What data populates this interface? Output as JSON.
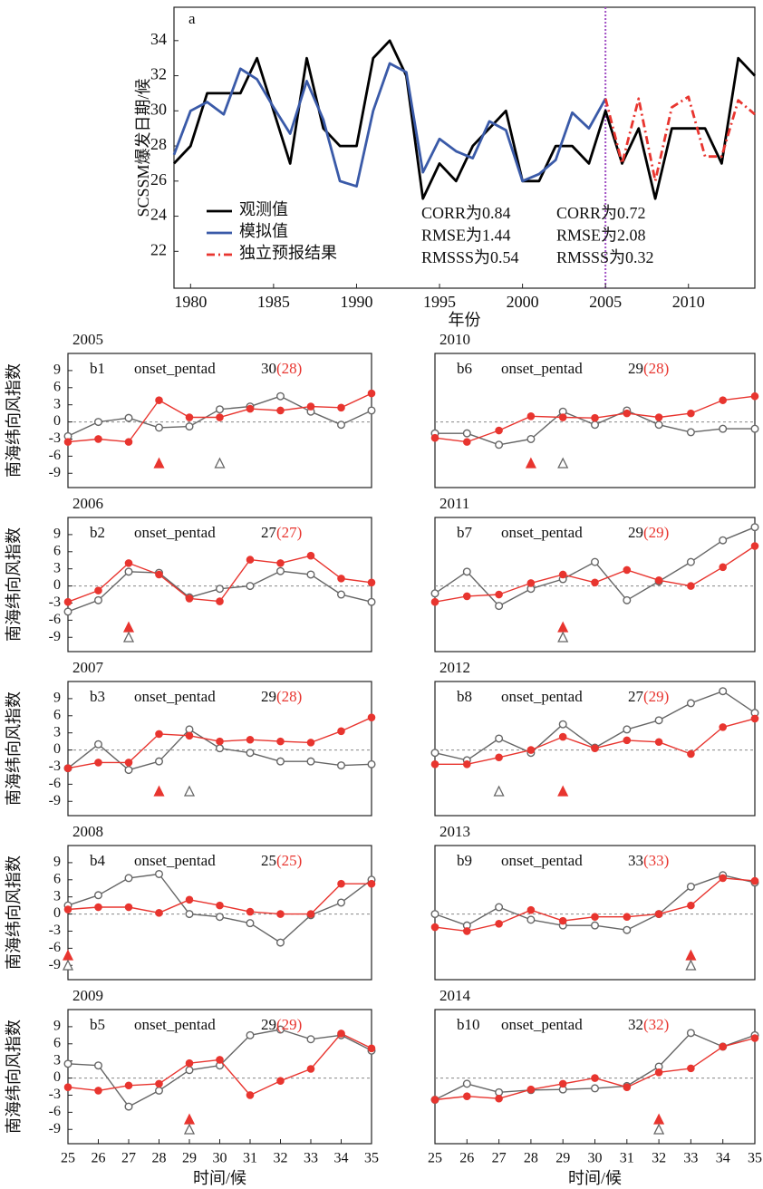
{
  "chart_data": [
    {
      "type": "line",
      "panel": "a",
      "ylabel": "SCSSM爆发日期/候",
      "xlabel": "年份",
      "x": [
        1979,
        1980,
        1981,
        1982,
        1983,
        1984,
        1985,
        1986,
        1987,
        1988,
        1989,
        1990,
        1991,
        1992,
        1993,
        1994,
        1995,
        1996,
        1997,
        1998,
        1999,
        2000,
        2001,
        2002,
        2003,
        2004,
        2005,
        2006,
        2007,
        2008,
        2009,
        2010,
        2011,
        2012,
        2013,
        2014
      ],
      "xlim": [
        1979,
        2014
      ],
      "xticks": [
        1980,
        1985,
        1990,
        1995,
        2000,
        2005,
        2010
      ],
      "ylim": [
        19.9,
        35.9
      ],
      "yticks": [
        22,
        24,
        26,
        28,
        30,
        32,
        34
      ],
      "vline": 2005,
      "vline_color": "#a14fc4",
      "series": [
        {
          "name": "观测值",
          "color": "#000000",
          "values": [
            27,
            28,
            31,
            31,
            31,
            33,
            30,
            27,
            33,
            29,
            28,
            28,
            33,
            34,
            32,
            25,
            27,
            26,
            28,
            29,
            30,
            26,
            26,
            28,
            28,
            27,
            30,
            27,
            29,
            25,
            29,
            29,
            29,
            27,
            33,
            32
          ]
        },
        {
          "name": "模拟值",
          "color": "#3a5aa8",
          "values": [
            27.5,
            30,
            30.5,
            29.8,
            32.4,
            31.8,
            30.2,
            28.7,
            31.7,
            29.5,
            26,
            25.7,
            30,
            32.7,
            32.2,
            26.5,
            28.4,
            27.7,
            27.3,
            29.4,
            28.9,
            26,
            26.4,
            27.2,
            29.9,
            29,
            30.7,
            null,
            null,
            null,
            null,
            null,
            null,
            null,
            null,
            null
          ]
        },
        {
          "name": "独立预报结果",
          "color": "#e8352f",
          "linestyle": "dashdot",
          "values": [
            null,
            null,
            null,
            null,
            null,
            null,
            null,
            null,
            null,
            null,
            null,
            null,
            null,
            null,
            null,
            null,
            null,
            null,
            null,
            null,
            null,
            null,
            null,
            null,
            null,
            null,
            30.7,
            27,
            30.7,
            26,
            30.2,
            30.8,
            27.4,
            27.4,
            30.6,
            29.8
          ]
        }
      ],
      "stats": [
        [
          "CORR为0.84",
          "RMSE为1.44",
          "RMSSS为0.54"
        ],
        [
          "CORR为0.72",
          "RMSE为2.08",
          "RMSSS为0.32"
        ]
      ]
    },
    {
      "type": "line",
      "year": "2005",
      "panel": "b1",
      "onset_title": "onset_pentad",
      "onset_obs": 30,
      "onset_model": 28,
      "onset_model_label": "(28)",
      "ylabel": "南海纬向风指数",
      "x": [
        25,
        26,
        27,
        28,
        29,
        30,
        31,
        32,
        33,
        34,
        35
      ],
      "xlim": [
        25,
        35
      ],
      "ylim": [
        -11.5,
        12
      ],
      "yticks": [
        -9,
        -6,
        -3,
        0,
        3,
        6,
        9
      ],
      "zero_line": true,
      "series": [
        {
          "color": "#666666",
          "marker": "open-circle",
          "values": [
            -2.5,
            0,
            0.7,
            -1,
            -0.8,
            2.2,
            2.7,
            4.5,
            1.8,
            -0.5,
            2
          ]
        },
        {
          "color": "#e8352f",
          "marker": "dot",
          "values": [
            -3.5,
            -3,
            -3.5,
            3.8,
            0.8,
            0.8,
            2.3,
            2,
            2.7,
            2.5,
            5
          ]
        }
      ]
    },
    {
      "type": "line",
      "year": "2006",
      "panel": "b2",
      "onset_title": "onset_pentad",
      "onset_obs": 27,
      "onset_model": 27,
      "onset_model_label": "(27)",
      "ylabel": "南海纬向风指数",
      "x": [
        25,
        26,
        27,
        28,
        29,
        30,
        31,
        32,
        33,
        34,
        35
      ],
      "xlim": [
        25,
        35
      ],
      "ylim": [
        -11.5,
        12
      ],
      "yticks": [
        -9,
        -6,
        -3,
        0,
        3,
        6,
        9
      ],
      "zero_line": true,
      "series": [
        {
          "color": "#666666",
          "marker": "open-circle",
          "values": [
            -4.5,
            -2.5,
            2.5,
            2.3,
            -2,
            -0.5,
            0,
            2.6,
            2,
            -1.5,
            -2.8
          ]
        },
        {
          "color": "#e8352f",
          "marker": "dot",
          "values": [
            -2.8,
            -0.8,
            4,
            2,
            -2.2,
            -2.7,
            4.6,
            4,
            5.3,
            1.3,
            0.6
          ]
        }
      ]
    },
    {
      "type": "line",
      "year": "2007",
      "panel": "b3",
      "onset_title": "onset_pentad",
      "onset_obs": 29,
      "onset_model": 28,
      "onset_model_label": "(28)",
      "ylabel": "南海纬向风指数",
      "x": [
        25,
        26,
        27,
        28,
        29,
        30,
        31,
        32,
        33,
        34,
        35
      ],
      "xlim": [
        25,
        35
      ],
      "ylim": [
        -11.5,
        12
      ],
      "yticks": [
        -9,
        -6,
        -3,
        0,
        3,
        6,
        9
      ],
      "zero_line": true,
      "series": [
        {
          "color": "#666666",
          "marker": "open-circle",
          "values": [
            -3.2,
            1,
            -3.5,
            -2,
            3.6,
            0.3,
            -0.5,
            -2,
            -2,
            -2.7,
            -2.5
          ]
        },
        {
          "color": "#e8352f",
          "marker": "dot",
          "values": [
            -3.2,
            -2.2,
            -2.2,
            2.8,
            2.5,
            1.5,
            1.8,
            1.5,
            1.3,
            3.3,
            5.7
          ]
        }
      ]
    },
    {
      "type": "line",
      "year": "2008",
      "panel": "b4",
      "onset_title": "onset_pentad",
      "onset_obs": 25,
      "onset_model": 25,
      "onset_model_label": "(25)",
      "ylabel": "南海纬向风指数",
      "x": [
        25,
        26,
        27,
        28,
        29,
        30,
        31,
        32,
        33,
        34,
        35
      ],
      "xlim": [
        25,
        35
      ],
      "ylim": [
        -11.5,
        12
      ],
      "yticks": [
        -9,
        -6,
        -3,
        0,
        3,
        6,
        9
      ],
      "zero_line": true,
      "series": [
        {
          "color": "#666666",
          "marker": "open-circle",
          "values": [
            1.5,
            3.3,
            6.3,
            7,
            0,
            -0.5,
            -1.6,
            -5,
            -0.2,
            2,
            6
          ]
        },
        {
          "color": "#e8352f",
          "marker": "dot",
          "values": [
            0.8,
            1.2,
            1.2,
            0.2,
            2.5,
            1.5,
            0.4,
            0,
            0,
            5.3,
            5.3
          ]
        }
      ]
    },
    {
      "type": "line",
      "year": "2009",
      "panel": "b5",
      "onset_title": "onset_pentad",
      "onset_obs": 29,
      "onset_model": 29,
      "onset_model_label": "(29)",
      "ylabel": "南海纬向风指数",
      "xlabel": "时间/候",
      "x": [
        25,
        26,
        27,
        28,
        29,
        30,
        31,
        32,
        33,
        34,
        35
      ],
      "xlim": [
        25,
        35
      ],
      "xticks": [
        25,
        26,
        27,
        28,
        29,
        30,
        31,
        32,
        33,
        34,
        35
      ],
      "ylim": [
        -11.5,
        12
      ],
      "yticks": [
        -9,
        -6,
        -3,
        0,
        3,
        6,
        9
      ],
      "zero_line": true,
      "series": [
        {
          "color": "#666666",
          "marker": "open-circle",
          "values": [
            2.5,
            2.2,
            -5,
            -2.2,
            1.4,
            2.2,
            7.5,
            8.5,
            6.8,
            7.5,
            4.8
          ]
        },
        {
          "color": "#e8352f",
          "marker": "dot",
          "values": [
            -1.6,
            -2.2,
            -1.3,
            -1,
            2.6,
            3.2,
            -3,
            -0.5,
            1.6,
            7.8,
            5.2
          ]
        }
      ]
    },
    {
      "type": "line",
      "year": "2010",
      "panel": "b6",
      "onset_title": "onset_pentad",
      "onset_obs": 29,
      "onset_model": 28,
      "onset_model_label": "(28)",
      "x": [
        25,
        26,
        27,
        28,
        29,
        30,
        31,
        32,
        33,
        34,
        35
      ],
      "xlim": [
        25,
        35
      ],
      "ylim": [
        -11.5,
        12
      ],
      "zero_line": true,
      "series": [
        {
          "color": "#666666",
          "marker": "open-circle",
          "values": [
            -2,
            -2,
            -4,
            -3,
            1.8,
            -0.5,
            2,
            -0.5,
            -1.8,
            -1.2,
            -1.2
          ]
        },
        {
          "color": "#e8352f",
          "marker": "dot",
          "values": [
            -2.8,
            -3.5,
            -1.5,
            1,
            0.8,
            0.7,
            1.5,
            0.8,
            1.5,
            3.8,
            4.5
          ]
        }
      ]
    },
    {
      "type": "line",
      "year": "2011",
      "panel": "b7",
      "onset_title": "onset_pentad",
      "onset_obs": 29,
      "onset_model": 29,
      "onset_model_label": "(29)",
      "x": [
        25,
        26,
        27,
        28,
        29,
        30,
        31,
        32,
        33,
        34,
        35
      ],
      "xlim": [
        25,
        35
      ],
      "ylim": [
        -11.5,
        12
      ],
      "zero_line": true,
      "series": [
        {
          "color": "#666666",
          "marker": "open-circle",
          "values": [
            -1.3,
            2.5,
            -3.5,
            -0.5,
            1.2,
            4.2,
            -2.5,
            0.8,
            4.2,
            8,
            10.3
          ]
        },
        {
          "color": "#e8352f",
          "marker": "dot",
          "values": [
            -2.8,
            -1.8,
            -1.5,
            0.5,
            2,
            0.6,
            2.8,
            1,
            0,
            3.3,
            7
          ]
        }
      ]
    },
    {
      "type": "line",
      "year": "2012",
      "panel": "b8",
      "onset_title": "onset_pentad",
      "onset_obs": 27,
      "onset_model": 29,
      "onset_model_label": "(29)",
      "x": [
        25,
        26,
        27,
        28,
        29,
        30,
        31,
        32,
        33,
        34,
        35
      ],
      "xlim": [
        25,
        35
      ],
      "ylim": [
        -11.5,
        12
      ],
      "zero_line": true,
      "series": [
        {
          "color": "#666666",
          "marker": "open-circle",
          "values": [
            -0.5,
            -1.8,
            2,
            -0.5,
            4.5,
            0.4,
            3.6,
            5.2,
            8.2,
            10.3,
            6.5
          ]
        },
        {
          "color": "#e8352f",
          "marker": "dot",
          "values": [
            -2.5,
            -2.5,
            -1.3,
            0,
            2.3,
            0.3,
            1.7,
            1.4,
            -0.7,
            4,
            5.5
          ]
        }
      ]
    },
    {
      "type": "line",
      "year": "2013",
      "panel": "b9",
      "onset_title": "onset_pentad",
      "onset_obs": 33,
      "onset_model": 33,
      "onset_model_label": "(33)",
      "x": [
        25,
        26,
        27,
        28,
        29,
        30,
        31,
        32,
        33,
        34,
        35
      ],
      "xlim": [
        25,
        35
      ],
      "ylim": [
        -11.5,
        12
      ],
      "zero_line": true,
      "series": [
        {
          "color": "#666666",
          "marker": "open-circle",
          "values": [
            0,
            -2,
            1.2,
            -1,
            -2,
            -2,
            -2.8,
            0,
            4.8,
            6.8,
            5.5
          ]
        },
        {
          "color": "#e8352f",
          "marker": "dot",
          "values": [
            -2.3,
            -3,
            -1.7,
            0.7,
            -1.2,
            -0.5,
            -0.5,
            0,
            1.5,
            6.3,
            5.8
          ]
        }
      ]
    },
    {
      "type": "line",
      "year": "2014",
      "panel": "b10",
      "onset_title": "onset_pentad",
      "onset_obs": 32,
      "onset_model": 32,
      "onset_model_label": "(32)",
      "xlabel": "时间/候",
      "x": [
        25,
        26,
        27,
        28,
        29,
        30,
        31,
        32,
        33,
        34,
        35
      ],
      "xlim": [
        25,
        35
      ],
      "xticks": [
        25,
        26,
        27,
        28,
        29,
        30,
        31,
        32,
        33,
        34,
        35
      ],
      "ylim": [
        -11.5,
        12
      ],
      "zero_line": true,
      "series": [
        {
          "color": "#666666",
          "marker": "open-circle",
          "values": [
            -3.8,
            -1,
            -2.5,
            -2.1,
            -2,
            -1.8,
            -1.4,
            2,
            7.9,
            5.5,
            7.5
          ]
        },
        {
          "color": "#e8352f",
          "marker": "dot",
          "values": [
            -3.8,
            -3.2,
            -3.6,
            -2,
            -1,
            0,
            -1.6,
            1,
            1.7,
            5.5,
            7
          ]
        }
      ]
    }
  ]
}
